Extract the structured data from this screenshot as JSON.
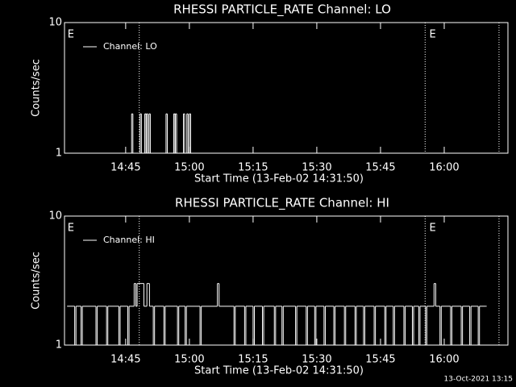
{
  "footer": "13-Oct-2021 13:15",
  "chart_data": [
    {
      "type": "line",
      "title": "RHESSI PARTICLE_RATE Channel: LO",
      "xlabel": "Start Time (13-Feb-02 14:31:50)",
      "ylabel": "Counts/sec",
      "xlim": [
        870.6,
        975
      ],
      "xticks": [
        {
          "value": 885,
          "label": "14:45"
        },
        {
          "value": 900,
          "label": "15:00"
        },
        {
          "value": 915,
          "label": "15:15"
        },
        {
          "value": 930,
          "label": "15:30"
        },
        {
          "value": 945,
          "label": "15:45"
        },
        {
          "value": 960,
          "label": "16:00"
        }
      ],
      "ylim": [
        1,
        10
      ],
      "yticks": [
        1,
        10
      ],
      "log_y": true,
      "step": true,
      "legend": "upper left",
      "markers": [
        888.2,
        955.5,
        972.9
      ],
      "annotations": [
        {
          "x": 871.3,
          "label": "E"
        },
        {
          "x": 956.5,
          "label": "E"
        }
      ],
      "series": [
        {
          "name": "Channel: LO",
          "color": "#ffffff",
          "x": [
            871.2,
            886.4,
            886.7,
            888.4,
            888.7,
            889.5,
            889.8,
            889.9,
            890.2,
            890.5,
            890.8,
            894.5,
            894.8,
            896.3,
            896.6,
            896.7,
            897.0,
            898.6,
            898.9,
            899.4,
            899.7,
            900.0,
            900.3,
            900.6
          ],
          "values": [
            1,
            2,
            1,
            2,
            1,
            2,
            1,
            2,
            1,
            2,
            1,
            2,
            1,
            2,
            1,
            2,
            1,
            2,
            1,
            2,
            1,
            2,
            1,
            1
          ]
        }
      ]
    },
    {
      "type": "line",
      "title": "RHESSI PARTICLE_RATE Channel: HI",
      "xlabel": "Start Time (13-Feb-02 14:31:50)",
      "ylabel": "Counts/sec",
      "xlim": [
        870.6,
        975
      ],
      "xticks": [
        {
          "value": 885,
          "label": "14:45"
        },
        {
          "value": 900,
          "label": "15:00"
        },
        {
          "value": 915,
          "label": "15:15"
        },
        {
          "value": 930,
          "label": "15:30"
        },
        {
          "value": 945,
          "label": "15:45"
        },
        {
          "value": 960,
          "label": "16:00"
        }
      ],
      "ylim": [
        1,
        10
      ],
      "yticks": [
        1,
        10
      ],
      "log_y": true,
      "step": true,
      "legend": "upper left",
      "markers": [
        888.2,
        955.5,
        972.9
      ],
      "annotations": [
        {
          "x": 871.3,
          "label": "E"
        },
        {
          "x": 956.5,
          "label": "E"
        }
      ],
      "series": [
        {
          "name": "Channel: HI",
          "color": "#ffffff",
          "x": [
            871.2,
            873.0,
            873.3,
            874.5,
            874.8,
            878.0,
            878.3,
            880.5,
            880.8,
            883.4,
            883.7,
            885.5,
            885.8,
            887.0,
            887.4,
            887.7,
            889.3,
            890.0,
            890.6,
            891.5,
            891.8,
            894.0,
            894.3,
            897.2,
            897.5,
            899.0,
            899.3,
            902.5,
            902.8,
            906.6,
            907.0,
            910.5,
            910.8,
            913.0,
            913.3,
            915.0,
            915.3,
            917.2,
            917.5,
            920.0,
            920.3,
            921.8,
            922.1,
            925.0,
            925.3,
            927.5,
            927.8,
            929.5,
            929.8,
            931.7,
            932.0,
            934.0,
            934.3,
            936.5,
            936.8,
            939.0,
            939.3,
            941.0,
            941.3,
            943.5,
            943.8,
            946.0,
            946.3,
            948.0,
            948.3,
            950.5,
            950.8,
            952.5,
            952.8,
            954.0,
            954.3,
            955.6,
            955.9,
            957.6,
            958.0,
            959.0,
            959.3,
            961.5,
            961.8,
            964.0,
            964.3,
            966.0,
            966.3,
            968.0,
            968.3,
            969.8
          ],
          "values": [
            2,
            1,
            2,
            1,
            2,
            1,
            2,
            1,
            2,
            1,
            2,
            1,
            2,
            3,
            2,
            3,
            2,
            3,
            2,
            1,
            2,
            1,
            2,
            1,
            2,
            1,
            2,
            1,
            2,
            3,
            2,
            1,
            2,
            1,
            2,
            1,
            2,
            1,
            2,
            1,
            2,
            1,
            2,
            1,
            2,
            1,
            2,
            1,
            2,
            1,
            2,
            1,
            2,
            1,
            2,
            1,
            2,
            1,
            2,
            1,
            2,
            1,
            2,
            1,
            2,
            1,
            2,
            1,
            2,
            1,
            2,
            1,
            2,
            3,
            2,
            1,
            2,
            1,
            2,
            1,
            2,
            1,
            2,
            1,
            2,
            2
          ]
        }
      ]
    }
  ]
}
